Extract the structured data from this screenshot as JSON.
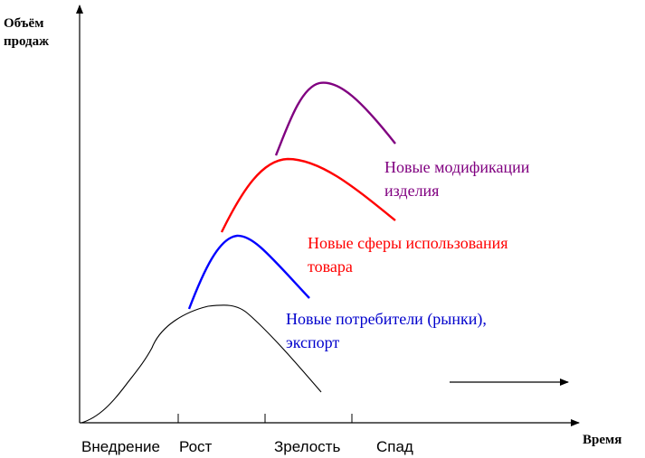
{
  "axes": {
    "y_label_line1": "Объём",
    "y_label_line2": "продаж",
    "x_label": "Время"
  },
  "stages": [
    "Внедрение",
    "Рост",
    "Зрелость",
    "Спад"
  ],
  "annotations": {
    "modifications": {
      "line1": "Новые модификации",
      "line2": "изделия",
      "color": "#800080"
    },
    "new_uses": {
      "line1": "Новые сферы использования",
      "line2": "товара",
      "color": "#ff0000"
    },
    "new_consumers": {
      "line1": "Новые потребители (рынки),",
      "line2": "экспорт",
      "color": "#0000cc"
    }
  },
  "curves": {
    "base": {
      "color": "#000000"
    },
    "consumers": {
      "color": "#0000ff"
    },
    "uses": {
      "color": "#ff0000"
    },
    "modifications": {
      "color": "#800080"
    }
  }
}
